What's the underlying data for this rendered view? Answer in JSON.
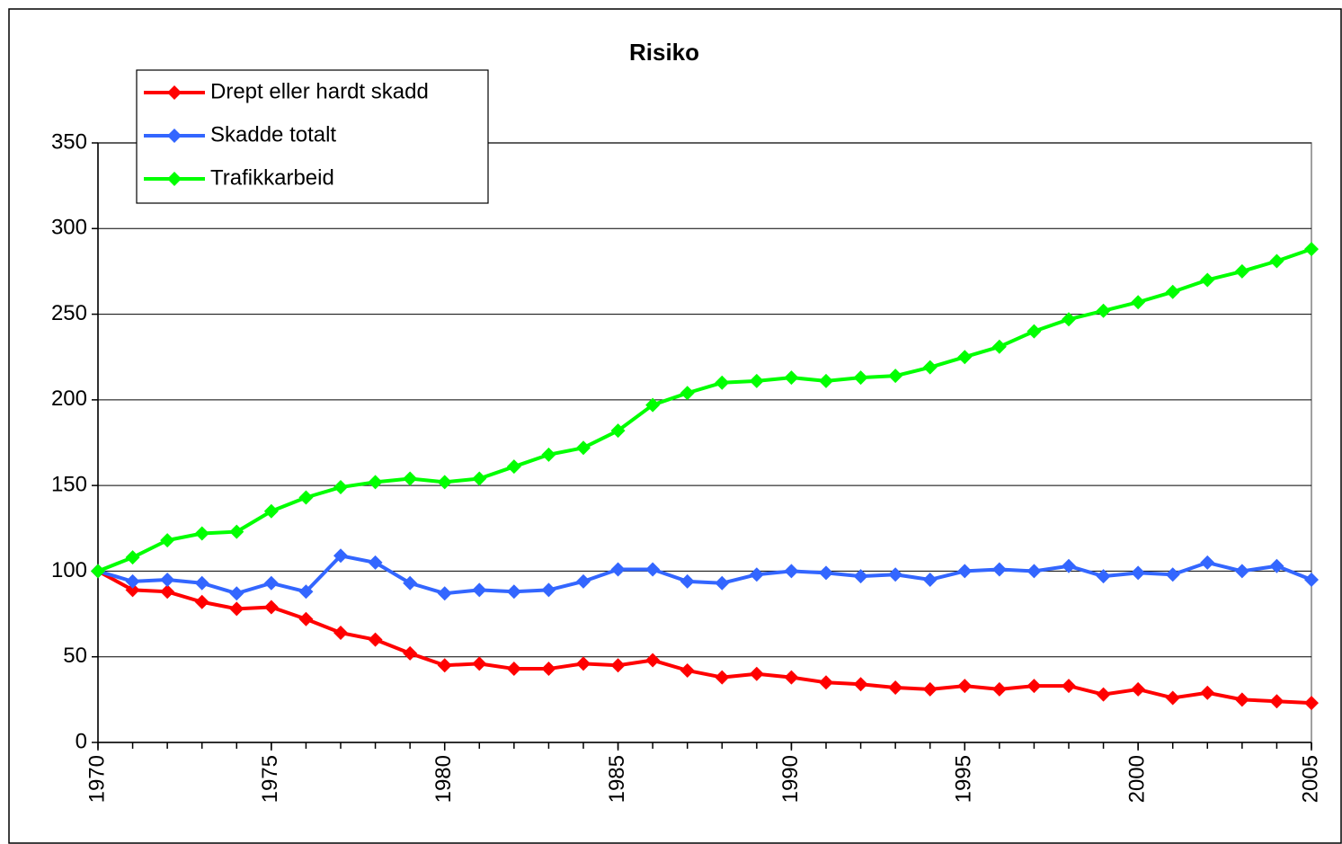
{
  "chart_data": {
    "type": "line",
    "title": "Risiko",
    "x": [
      1970,
      1971,
      1972,
      1973,
      1974,
      1975,
      1976,
      1977,
      1978,
      1979,
      1980,
      1981,
      1982,
      1983,
      1984,
      1985,
      1986,
      1987,
      1988,
      1989,
      1990,
      1991,
      1992,
      1993,
      1994,
      1995,
      1996,
      1997,
      1998,
      1999,
      2000,
      2001,
      2002,
      2003,
      2004,
      2005
    ],
    "series": [
      {
        "name": "Drept eller hardt skadd",
        "color": "#ff0000",
        "values": [
          100,
          89,
          88,
          82,
          78,
          79,
          72,
          64,
          60,
          52,
          45,
          46,
          43,
          43,
          46,
          45,
          48,
          42,
          38,
          40,
          38,
          35,
          34,
          32,
          31,
          33,
          31,
          33,
          33,
          28,
          31,
          26,
          29,
          25,
          24,
          23
        ]
      },
      {
        "name": "Skadde totalt",
        "color": "#3366ff",
        "values": [
          100,
          94,
          95,
          93,
          87,
          93,
          88,
          109,
          105,
          93,
          87,
          89,
          88,
          89,
          94,
          101,
          101,
          94,
          93,
          98,
          100,
          99,
          97,
          98,
          95,
          100,
          101,
          100,
          103,
          97,
          99,
          98,
          105,
          100,
          103,
          95
        ]
      },
      {
        "name": "Trafikkarbeid",
        "color": "#00ff00",
        "values": [
          100,
          108,
          118,
          122,
          123,
          135,
          143,
          149,
          152,
          154,
          152,
          154,
          161,
          168,
          172,
          182,
          197,
          204,
          210,
          211,
          213,
          211,
          213,
          214,
          219,
          225,
          231,
          240,
          247,
          252,
          257,
          263,
          270,
          275,
          281,
          288
        ]
      }
    ],
    "xlim": [
      1970,
      2005
    ],
    "xticks": [
      1970,
      1975,
      1980,
      1985,
      1990,
      1995,
      2000,
      2005
    ],
    "ylim": [
      0,
      350
    ],
    "yticks": [
      0,
      50,
      100,
      150,
      200,
      250,
      300,
      350
    ],
    "grid": true,
    "legend": "top-left"
  }
}
